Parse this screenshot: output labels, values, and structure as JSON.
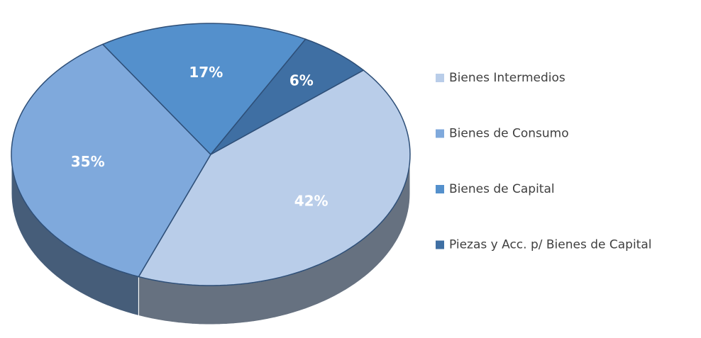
{
  "chart_data": {
    "type": "pie",
    "categories": [
      "Bienes Intermedios",
      "Bienes de Consumo",
      "Bienes de Capital",
      "Piezas y Acc. p/ Bienes de Capital"
    ],
    "values": [
      42,
      35,
      17,
      6
    ],
    "value_labels": [
      "42%",
      "35%",
      "17%",
      "6%"
    ],
    "colors": [
      "#b9cde9",
      "#7fa9dc",
      "#5490cc",
      "#3f6fa3"
    ],
    "legend": "right"
  }
}
